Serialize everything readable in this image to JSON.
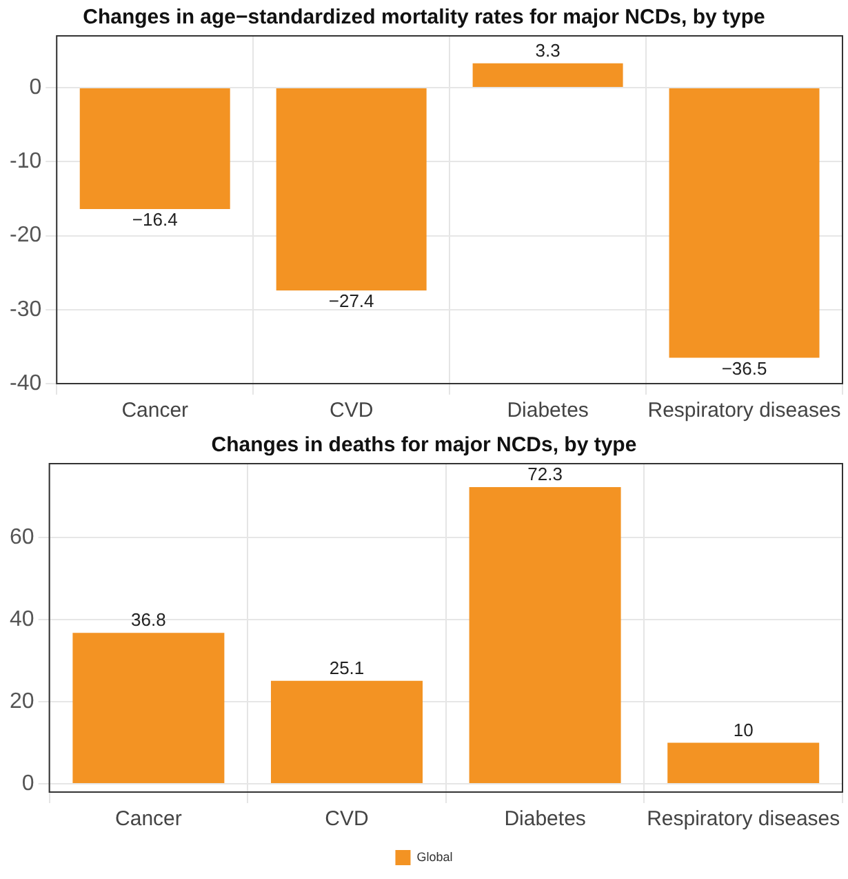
{
  "chart_data": [
    {
      "type": "bar",
      "title": "Changes in age−standardized mortality rates for major NCDs, by type",
      "categories": [
        "Cancer",
        "CVD",
        "Diabetes",
        "Respiratory diseases"
      ],
      "series": [
        {
          "color": "#f39323",
          "values": [
            -16.4,
            -27.4,
            3.3,
            -36.5
          ]
        }
      ],
      "ylim": [
        -40,
        7
      ],
      "yticks": [
        -40,
        -30,
        -20,
        -10,
        0
      ],
      "grid": true,
      "data_labels": true,
      "legend": false
    },
    {
      "type": "bar",
      "title": "Changes in deaths for major NCDs, by type",
      "categories": [
        "Cancer",
        "CVD",
        "Diabetes",
        "Respiratory diseases"
      ],
      "series": [
        {
          "name": "Global",
          "color": "#f39323",
          "values": [
            36.8,
            25.1,
            72.3,
            10
          ]
        }
      ],
      "ylim": [
        -2,
        78
      ],
      "yticks": [
        0,
        20,
        40,
        60
      ],
      "grid": true,
      "data_labels": true,
      "legend": "bottom"
    }
  ]
}
